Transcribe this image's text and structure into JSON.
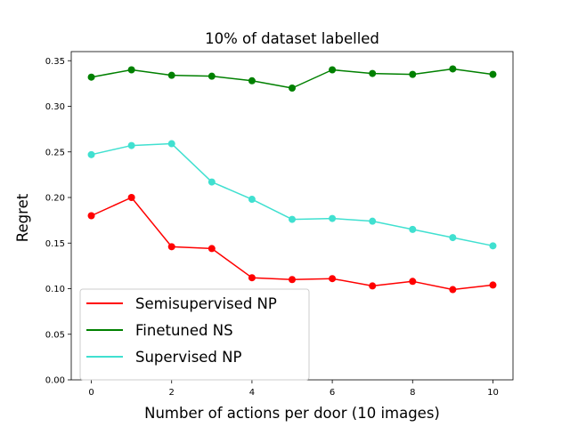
{
  "chart_data": {
    "type": "line",
    "title": "10% of dataset labelled",
    "xlabel": "Number of actions per door (10 images)",
    "ylabel": "Regret",
    "xlim": [
      -0.5,
      10.5
    ],
    "ylim": [
      0.0,
      0.36
    ],
    "xticks": [
      0,
      2,
      4,
      6,
      8,
      10
    ],
    "yticks": [
      0.0,
      0.05,
      0.1,
      0.15,
      0.2,
      0.25,
      0.3,
      0.35
    ],
    "ytick_labels": [
      "0.00",
      "0.05",
      "0.10",
      "0.15",
      "0.20",
      "0.25",
      "0.30",
      "0.35"
    ],
    "grid": false,
    "legend_position": "lower-left",
    "x": [
      0,
      1,
      2,
      3,
      4,
      5,
      6,
      7,
      8,
      9,
      10
    ],
    "series": [
      {
        "name": "Semisupervised NP",
        "color": "#ff0000",
        "values": [
          0.18,
          0.2,
          0.146,
          0.144,
          0.112,
          0.11,
          0.111,
          0.103,
          0.108,
          0.099,
          0.104
        ]
      },
      {
        "name": "Finetuned NS",
        "color": "#008000",
        "values": [
          0.332,
          0.34,
          0.334,
          0.333,
          0.328,
          0.32,
          0.34,
          0.336,
          0.335,
          0.341,
          0.335
        ]
      },
      {
        "name": "Supervised NP",
        "color": "#40e0d0",
        "values": [
          0.247,
          0.257,
          0.259,
          0.217,
          0.198,
          0.176,
          0.177,
          0.174,
          0.165,
          0.156,
          0.147
        ]
      }
    ]
  }
}
